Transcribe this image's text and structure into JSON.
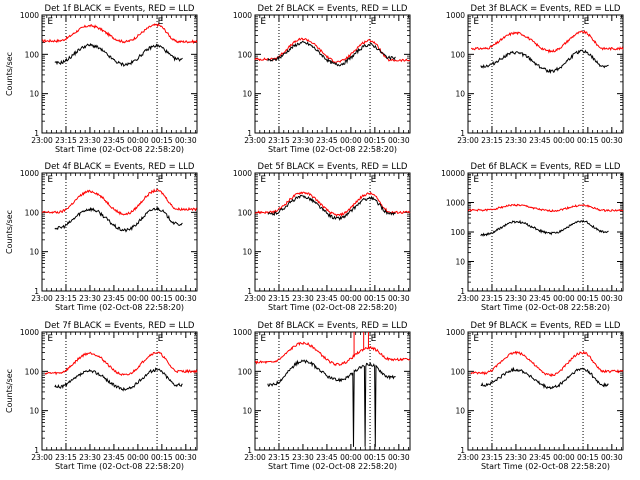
{
  "panels": [
    {
      "title": "Det 1f BLACK = Events, RED = LLD",
      "ylabel": "Counts/sec",
      "xlabel": "Start Time (02-Oct-08 22:58:20)",
      "ymax_exp": 3,
      "y_tick_labels": [
        "1",
        "10",
        "100",
        "1000"
      ],
      "black_shape": "dip",
      "black": [
        60,
        170,
        55,
        165,
        75
      ],
      "red": [
        220,
        530,
        210,
        560,
        210
      ],
      "markers": [
        "E",
        "E"
      ]
    },
    {
      "title": "Det 2f BLACK = Events, RED = LLD",
      "ylabel": "",
      "xlabel": "Start Time (02-Oct-08 22:58:20)",
      "ymax_exp": 3,
      "y_tick_labels": [
        "1",
        "10",
        "100",
        "1000"
      ],
      "black_shape": "dip",
      "black": [
        70,
        195,
        55,
        175,
        80
      ],
      "red": [
        75,
        245,
        65,
        225,
        70
      ],
      "markers": [
        "E",
        "E"
      ]
    },
    {
      "title": "Det 3f BLACK = Events, RED = LLD",
      "ylabel": "",
      "xlabel": "",
      "ymax_exp": 3,
      "y_tick_labels": [
        "1",
        "10",
        "100",
        "1000"
      ],
      "black_shape": "dip",
      "black": [
        50,
        110,
        38,
        120,
        50
      ],
      "red": [
        140,
        350,
        120,
        370,
        140
      ],
      "markers": [
        "E",
        "E"
      ]
    },
    {
      "title": "Det 4f BLACK = Events, RED = LLD",
      "ylabel": "Counts/sec",
      "xlabel": "Start Time (02-Oct-08 22:58:20)",
      "ymax_exp": 3,
      "y_tick_labels": [
        "1",
        "10",
        "100",
        "1000"
      ],
      "black_shape": "dip",
      "black": [
        40,
        120,
        35,
        125,
        50
      ],
      "red": [
        100,
        340,
        90,
        360,
        120
      ],
      "markers": [
        "E",
        "E"
      ]
    },
    {
      "title": "Det 5f BLACK = Events, RED = LLD",
      "ylabel": "",
      "xlabel": "Start Time (02-Oct-08 22:58:20)",
      "ymax_exp": 3,
      "y_tick_labels": [
        "1",
        "10",
        "100",
        "1000"
      ],
      "black_shape": "dip",
      "black": [
        90,
        250,
        70,
        230,
        90
      ],
      "red": [
        100,
        320,
        85,
        300,
        100
      ],
      "markers": [
        "E",
        "E"
      ]
    },
    {
      "title": "Det 6f BLACK = Events, RED = LLD",
      "ylabel": "",
      "xlabel": "Start Time (02-Oct-08 22:58:20)",
      "ymax_exp": 4,
      "y_tick_labels": [
        "1",
        "10",
        "100",
        "1000",
        "10000"
      ],
      "black_shape": "dip",
      "black": [
        80,
        220,
        90,
        230,
        100
      ],
      "red": [
        550,
        820,
        520,
        800,
        540
      ],
      "markers": [
        "E",
        "E"
      ]
    },
    {
      "title": "Det 7f BLACK = Events, RED = LLD",
      "ylabel": "Counts/sec",
      "xlabel": "Start Time (02-Oct-08 22:58:20)",
      "ymax_exp": 3,
      "y_tick_labels": [
        "1",
        "10",
        "100",
        "1000"
      ],
      "black_shape": "dip",
      "black": [
        40,
        100,
        35,
        110,
        45
      ],
      "red": [
        90,
        290,
        80,
        300,
        100
      ],
      "markers": [
        "E",
        "E"
      ]
    },
    {
      "title": "Det 8f BLACK = Events, RED = LLD",
      "ylabel": "",
      "xlabel": "Start Time (02-Oct-08 22:58:20)",
      "ymax_exp": 3,
      "y_tick_labels": [
        "1",
        "10",
        "100",
        "1000"
      ],
      "black_shape": "spiky",
      "black": [
        45,
        180,
        60,
        150,
        70
      ],
      "red": [
        170,
        520,
        150,
        400,
        200
      ],
      "markers": [
        "E",
        "E"
      ]
    },
    {
      "title": "Det 9f BLACK = Events, RED = LLD",
      "ylabel": "",
      "xlabel": "Start Time (02-Oct-08 22:58:20)",
      "ymax_exp": 3,
      "y_tick_labels": [
        "1",
        "10",
        "100",
        "1000"
      ],
      "black_shape": "dip",
      "black": [
        45,
        110,
        38,
        115,
        45
      ],
      "red": [
        90,
        300,
        80,
        300,
        100
      ],
      "markers": [
        "E",
        "E"
      ]
    }
  ],
  "x_tick_labels": [
    "23:00",
    "23:15",
    "23:30",
    "23:45",
    "00:00",
    "00:15",
    "00:30"
  ],
  "chart_data": {
    "type": "line",
    "x_ticks": [
      "23:00",
      "23:15",
      "23:30",
      "23:45",
      "00:00",
      "00:15",
      "00:30"
    ],
    "xlabel": "Start Time (02-Oct-08 22:58:20)",
    "ylabel": "Counts/sec",
    "yscale": "log",
    "colors": {
      "events": "#000000",
      "lld": "#ff0000"
    },
    "note_series": "black = Events, red = LLD; five values per series at approx 23:10, 23:30, 23:52, 00:12, 00:25"
  }
}
